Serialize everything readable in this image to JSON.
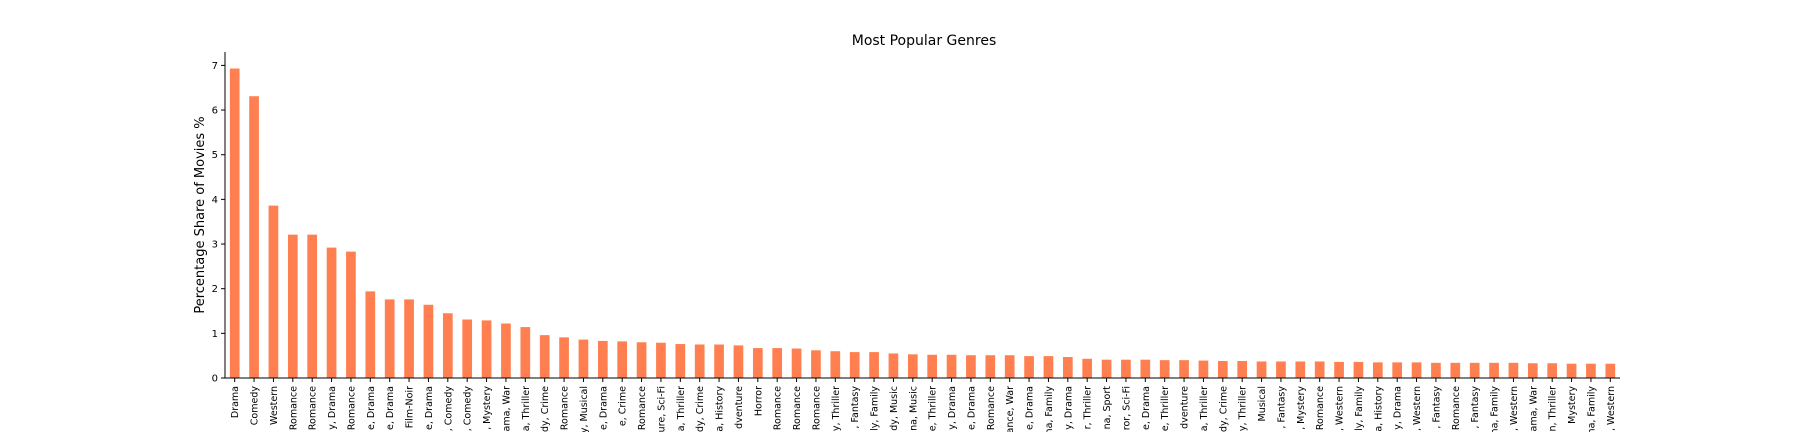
{
  "chart_data": {
    "type": "bar",
    "title": "Most Popular Genres",
    "xlabel": "",
    "ylabel": "Percentage Share of Movies %",
    "ylim": [
      0,
      7.3
    ],
    "yticks": [
      0,
      1,
      2,
      3,
      4,
      5,
      6,
      7
    ],
    "grid": false,
    "legend": "none",
    "bar_color": "#ff7f50",
    "categories": [
      "Drama",
      "Comedy",
      "Western",
      "Romance",
      "Romance",
      "y, Drama",
      "Romance",
      "e, Drama",
      "e, Drama",
      "Film-Noir",
      "e, Drama",
      ", Comedy",
      ", Comedy",
      ", Mystery",
      "ama, War",
      "a, Thriller",
      "dy, Crime",
      "Romance",
      "y, Musical",
      "e, Drama",
      "e, Crime",
      "Romance",
      "ure, Sci-Fi",
      "a, Thriller",
      "dy, Crime",
      "a, History",
      "dventure",
      "Horror",
      "Romance",
      "Romance",
      "Romance",
      "y, Thriller",
      ", Fantasy",
      "ly, Family",
      "dy, Music",
      "na, Music",
      "e, Thriller",
      "y, Drama",
      "e, Drama",
      "Romance",
      "ance, War",
      "e, Drama",
      "na, Family",
      "y, Drama",
      "r, Thriller",
      "na, Sport",
      "ror, Sci-Fi",
      "e, Drama",
      "e, Thriller",
      "dventure",
      "a, Thriller",
      "dy, Crime",
      "y, Thriller",
      "Musical",
      ", Fantasy",
      ", Mystery",
      "Romance",
      ", Western",
      "ly, Family",
      "a, History",
      "y, Drama",
      ", Western",
      ", Fantasy",
      "Romance",
      ", Fantasy",
      "na, Family",
      ", Western",
      "ama, War",
      "n, Thriller",
      "Mystery",
      "na, Family",
      ", Western"
    ],
    "values": [
      6.93,
      6.31,
      3.86,
      3.21,
      3.21,
      2.92,
      2.83,
      1.94,
      1.76,
      1.76,
      1.64,
      1.45,
      1.31,
      1.29,
      1.22,
      1.14,
      0.96,
      0.91,
      0.86,
      0.83,
      0.82,
      0.8,
      0.79,
      0.76,
      0.75,
      0.75,
      0.73,
      0.67,
      0.67,
      0.66,
      0.62,
      0.6,
      0.58,
      0.58,
      0.55,
      0.53,
      0.52,
      0.52,
      0.51,
      0.51,
      0.51,
      0.49,
      0.49,
      0.47,
      0.43,
      0.41,
      0.41,
      0.41,
      0.4,
      0.4,
      0.39,
      0.38,
      0.38,
      0.37,
      0.37,
      0.37,
      0.37,
      0.36,
      0.36,
      0.35,
      0.35,
      0.35,
      0.34,
      0.34,
      0.34,
      0.34,
      0.34,
      0.33,
      0.33,
      0.32,
      0.32,
      0.32
    ]
  }
}
